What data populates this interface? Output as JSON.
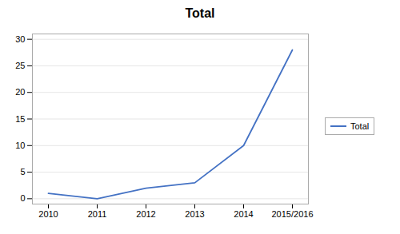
{
  "chart_data": {
    "type": "line",
    "title": "Total",
    "categories": [
      "2010",
      "2011",
      "2012",
      "2013",
      "2014",
      "2015/2016"
    ],
    "series": [
      {
        "name": "Total",
        "color": "#4472C4",
        "values": [
          1,
          0,
          2,
          3,
          10,
          28
        ]
      }
    ],
    "ylim": [
      -1,
      31
    ],
    "yticks": [
      0,
      5,
      10,
      15,
      20,
      25,
      30
    ],
    "grid": "y",
    "legend": "right"
  }
}
